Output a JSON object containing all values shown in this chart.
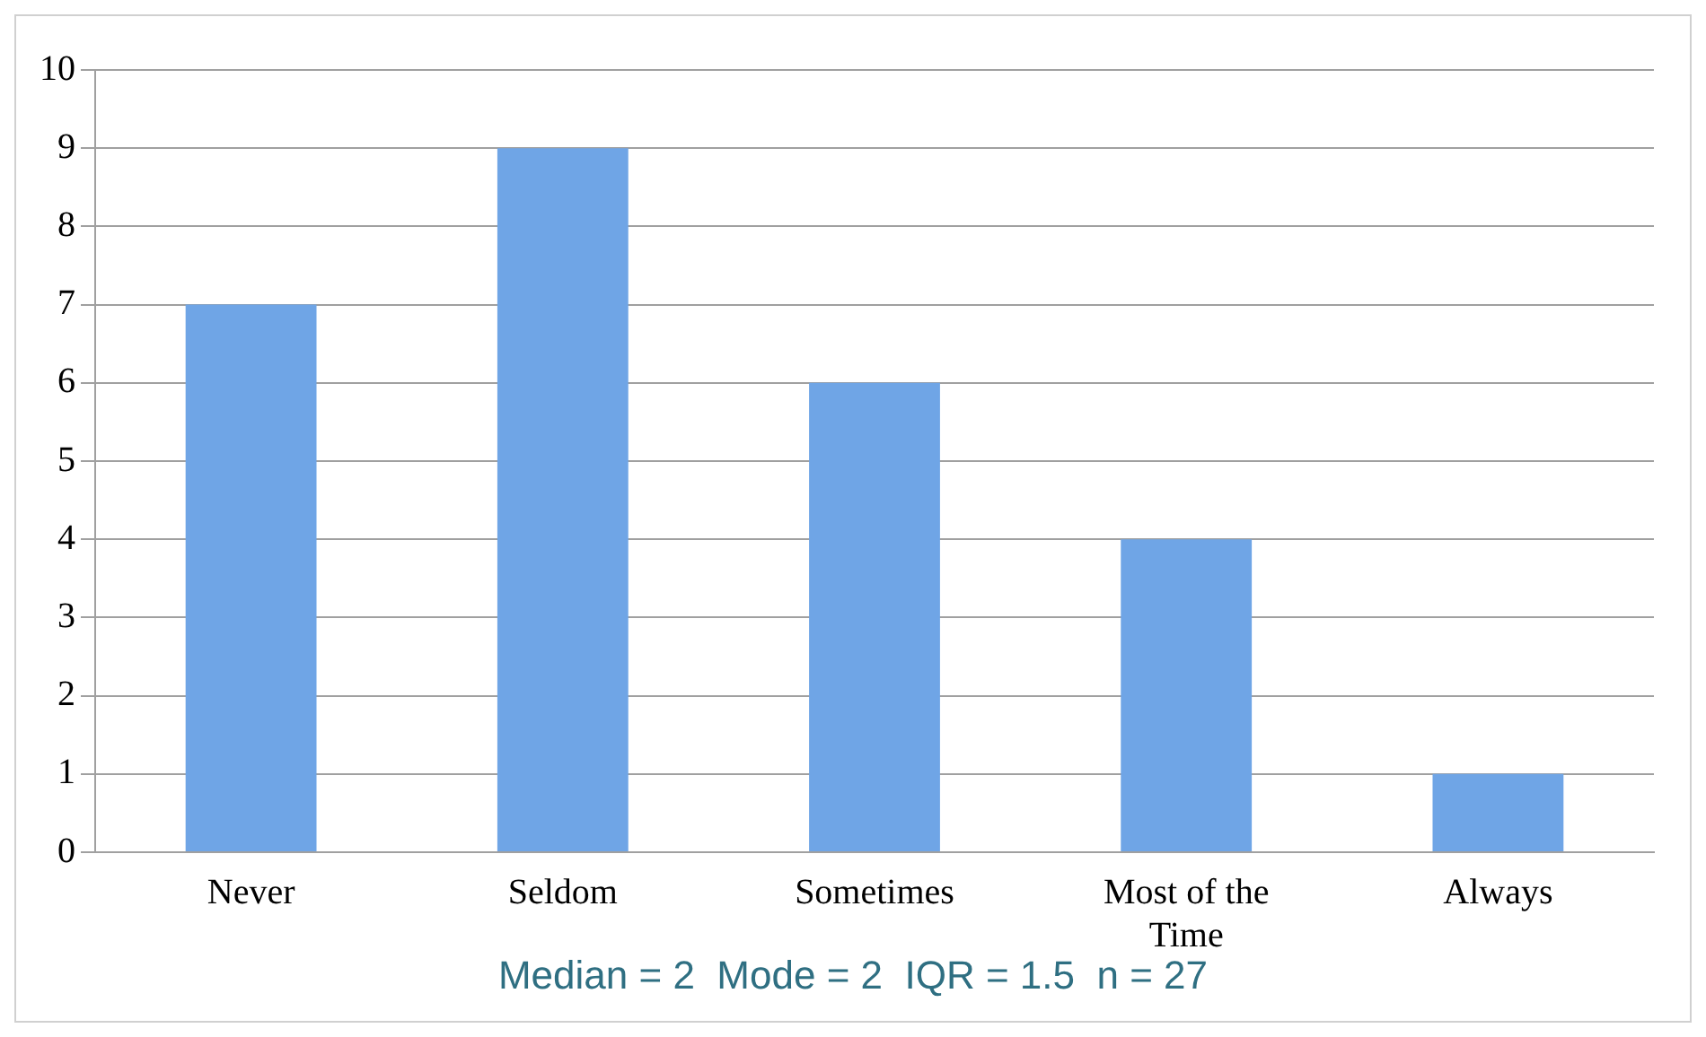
{
  "chart_data": {
    "type": "bar",
    "categories": [
      "Never",
      "Seldom",
      "Sometimes",
      "Most of the Time",
      "Always"
    ],
    "values": [
      7,
      9,
      6,
      4,
      1
    ],
    "color": "#6fa5e6",
    "ylim": [
      0,
      10
    ],
    "yticks": [
      0,
      1,
      2,
      3,
      4,
      5,
      6,
      7,
      8,
      9,
      10
    ],
    "grid": "y",
    "annotations": [
      "Median = 2  Mode = 2  IQR = 1.5  n = 27"
    ]
  }
}
